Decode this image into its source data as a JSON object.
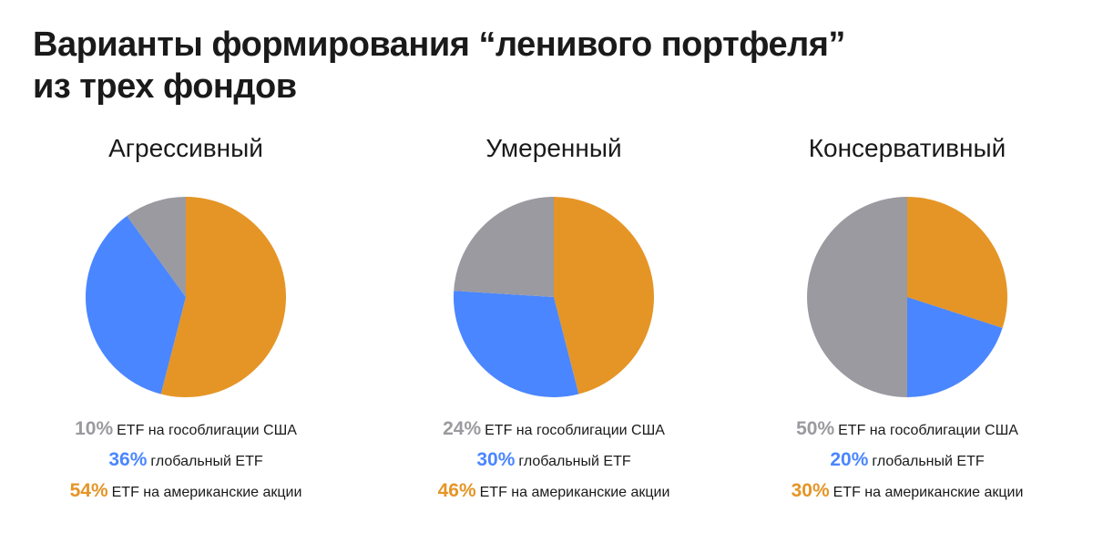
{
  "header": {
    "title_line1": "Варианты формирования “ленивого портфеля”",
    "title_line2": "из трех фондов"
  },
  "colors": {
    "bonds": "#9a9aa0",
    "global": "#4a86ff",
    "us": "#e59526"
  },
  "chart_data": [
    {
      "type": "pie",
      "title": "Агрессивный",
      "slices": [
        {
          "label": "ETF на гособлигации США",
          "value": 10,
          "value_label": "10%",
          "color": "#9a9aa0"
        },
        {
          "label": "глобальный ETF",
          "value": 36,
          "value_label": "36%",
          "color": "#4a86ff"
        },
        {
          "label": "ETF на американские акции",
          "value": 54,
          "value_label": "54%",
          "color": "#e59526"
        }
      ]
    },
    {
      "type": "pie",
      "title": "Умеренный",
      "slices": [
        {
          "label": "ETF на гособлигации США",
          "value": 24,
          "value_label": "24%",
          "color": "#9a9aa0"
        },
        {
          "label": "глобальный ETF",
          "value": 30,
          "value_label": "30%",
          "color": "#4a86ff"
        },
        {
          "label": "ETF на американские акции",
          "value": 46,
          "value_label": "46%",
          "color": "#e59526"
        }
      ]
    },
    {
      "type": "pie",
      "title": "Консервативный",
      "slices": [
        {
          "label": "ETF на гособлигации США",
          "value": 50,
          "value_label": "50%",
          "color": "#9a9aa0"
        },
        {
          "label": "глобальный ETF",
          "value": 20,
          "value_label": "20%",
          "color": "#4a86ff"
        },
        {
          "label": "ETF на американские акции",
          "value": 30,
          "value_label": "30%",
          "color": "#e59526"
        }
      ]
    }
  ]
}
